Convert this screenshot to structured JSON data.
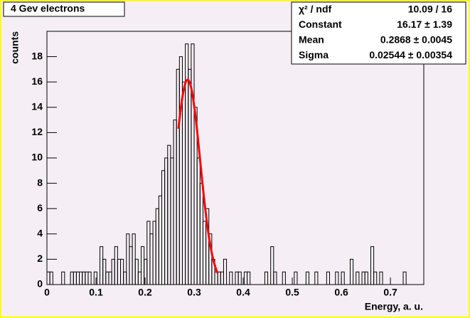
{
  "chart_data": {
    "type": "histogram",
    "title": "4 Gev electrons",
    "x_label": "Energy, a. u.",
    "y_label": "counts",
    "bins": [
      0,
      0.006,
      0.012,
      0.018,
      0.024,
      0.03,
      0.036,
      0.042,
      0.048,
      0.054,
      0.06,
      0.066,
      0.072,
      0.078,
      0.084,
      0.09,
      0.096,
      0.102,
      0.108,
      0.114,
      0.12,
      0.126,
      0.132,
      0.138,
      0.144,
      0.15,
      0.156,
      0.162,
      0.168,
      0.174,
      0.18,
      0.186,
      0.192,
      0.198,
      0.204,
      0.21,
      0.216,
      0.222,
      0.228,
      0.234,
      0.24,
      0.246,
      0.252,
      0.258,
      0.264,
      0.27,
      0.276,
      0.282,
      0.288,
      0.294,
      0.3,
      0.306,
      0.312,
      0.318,
      0.324,
      0.33,
      0.336,
      0.342,
      0.348,
      0.354,
      0.36,
      0.366,
      0.372,
      0.378,
      0.384,
      0.39,
      0.396,
      0.402,
      0.408,
      0.414,
      0.42,
      0.426,
      0.432,
      0.438,
      0.444,
      0.45,
      0.456,
      0.462,
      0.468,
      0.474,
      0.48,
      0.486,
      0.492,
      0.498,
      0.504,
      0.51,
      0.516,
      0.522,
      0.528,
      0.534,
      0.54,
      0.546,
      0.552,
      0.558,
      0.564,
      0.57,
      0.576,
      0.582,
      0.588,
      0.594,
      0.6,
      0.606,
      0.612,
      0.618,
      0.624,
      0.63,
      0.636,
      0.642,
      0.648,
      0.654,
      0.66,
      0.666,
      0.672,
      0.678,
      0.684,
      0.69,
      0.696,
      0.702,
      0.708,
      0.714,
      0.72,
      0.726,
      0.732,
      0.738,
      0.744,
      0.75,
      0.756,
      0.762,
      0.768
    ],
    "values": [
      1,
      1,
      0,
      0,
      0,
      1,
      0,
      0,
      1,
      1,
      1,
      1,
      1,
      1,
      1,
      0,
      1,
      0,
      3,
      2,
      1,
      1,
      2,
      3,
      2,
      2,
      1,
      4,
      3,
      4,
      2,
      1,
      3,
      2,
      5,
      4,
      5,
      6,
      7,
      9,
      10,
      11,
      10,
      13,
      17,
      18,
      16,
      19,
      17,
      19,
      14,
      10,
      8,
      5,
      6,
      4,
      2,
      1,
      1,
      1,
      2,
      0,
      1,
      0,
      1,
      1,
      0,
      1,
      1,
      0,
      0,
      0,
      0,
      0,
      1,
      0,
      3,
      1,
      0,
      0,
      1,
      0,
      0,
      0,
      1,
      0,
      0,
      0,
      1,
      0,
      0,
      1,
      0,
      0,
      0,
      1,
      0,
      0,
      1,
      0,
      1,
      0,
      0,
      2,
      0,
      1,
      0,
      1,
      1,
      0,
      3,
      1,
      0,
      1,
      0,
      0,
      0,
      0,
      0,
      0,
      0,
      1,
      0,
      0,
      0,
      0,
      0,
      0
    ],
    "color": "#000000",
    "xlim": [
      0,
      0.768
    ],
    "xticks": [
      0,
      0.1,
      0.2,
      0.3,
      0.4,
      0.5,
      0.6,
      0.7
    ],
    "ylim": [
      0,
      20
    ],
    "yticks": [
      0,
      2,
      4,
      6,
      8,
      10,
      12,
      14,
      16,
      18
    ],
    "fit": {
      "color": "#ff0000",
      "constant": 16.17,
      "mean": 0.2868,
      "sigma": 0.02544,
      "range": [
        0.268,
        0.348
      ]
    },
    "stats": [
      {
        "name": "χ² / ndf",
        "value": "10.09 / 16"
      },
      {
        "name": "Constant",
        "value": "16.17 ± 1.39"
      },
      {
        "name": "Mean",
        "value": "0.2868 ± 0.0045"
      },
      {
        "name": "Sigma",
        "value": "0.02544 ± 0.00354"
      }
    ]
  }
}
